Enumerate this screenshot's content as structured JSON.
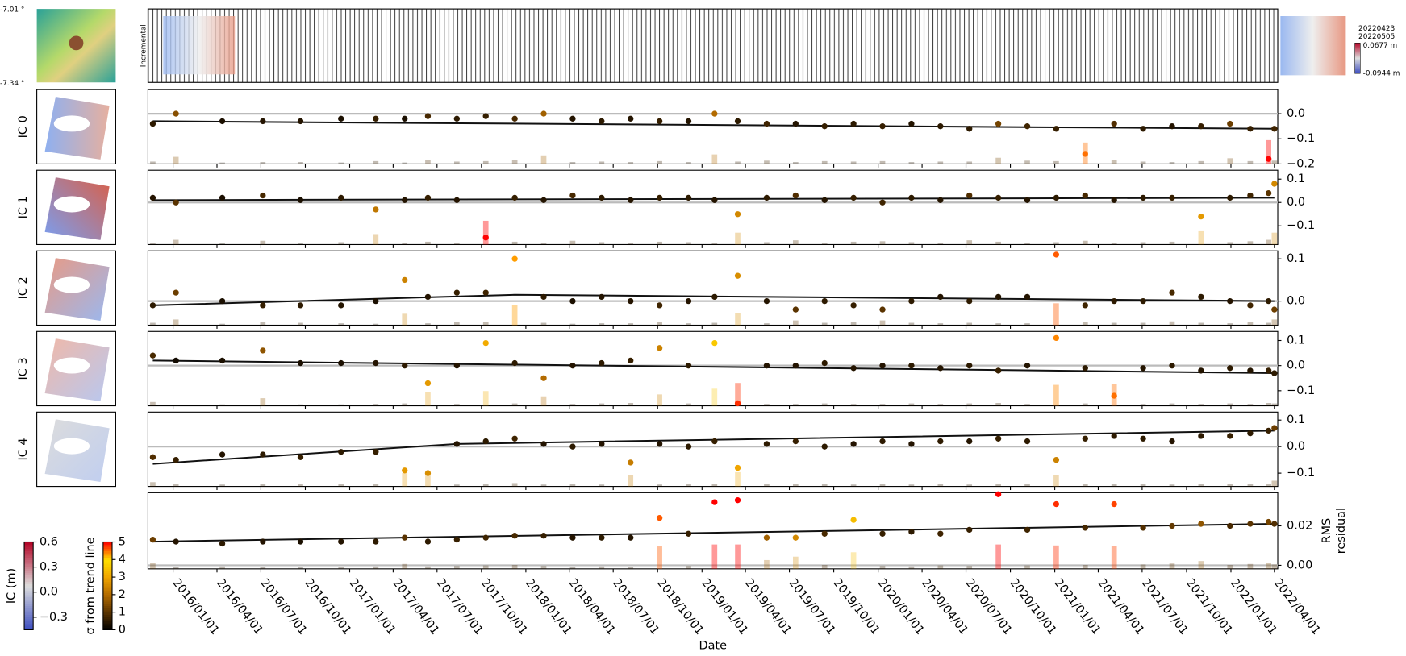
{
  "chart_data": {
    "type": "timeseries-panels",
    "xlabel": "Date",
    "x": [
      "2015/11/20",
      "2016/01/07",
      "2016/04/12",
      "2016/07/05",
      "2016/09/21",
      "2016/12/14",
      "2017/02/24",
      "2017/04/25",
      "2017/06/12",
      "2017/08/11",
      "2017/10/10",
      "2017/12/09",
      "2018/02/07",
      "2018/04/08",
      "2018/06/07",
      "2018/08/06",
      "2018/10/05",
      "2018/12/04",
      "2019/01/27",
      "2019/03/16",
      "2019/05/15",
      "2019/07/14",
      "2019/09/12",
      "2019/11/11",
      "2020/01/10",
      "2020/03/10",
      "2020/05/09",
      "2020/07/08",
      "2020/09/06",
      "2020/11/05",
      "2021/01/04",
      "2021/03/05",
      "2021/05/04",
      "2021/07/03",
      "2021/09/01",
      "2021/10/31",
      "2021/12/30",
      "2022/02/10",
      "2022/03/20",
      "2022/04/01"
    ],
    "xlim": [
      "2015/11/10",
      "2022/04/08"
    ],
    "xticks": [
      "2016/01/01",
      "2016/04/01",
      "2016/07/01",
      "2016/10/01",
      "2017/01/01",
      "2017/04/01",
      "2017/07/01",
      "2017/10/01",
      "2018/01/01",
      "2018/04/01",
      "2018/07/01",
      "2018/10/01",
      "2019/01/01",
      "2019/04/01",
      "2019/07/01",
      "2019/10/01",
      "2020/01/01",
      "2020/04/01",
      "2020/07/01",
      "2020/10/01",
      "2021/01/01",
      "2021/04/01",
      "2021/07/01",
      "2021/10/01",
      "2022/01/01",
      "2022/04/01"
    ],
    "panels": [
      {
        "type": "scatter",
        "ylabel": "IC 0",
        "values": [
          -0.04,
          0.0,
          -0.03,
          -0.03,
          -0.03,
          -0.02,
          -0.02,
          -0.02,
          -0.01,
          -0.02,
          -0.01,
          -0.02,
          0.0,
          -0.02,
          -0.03,
          -0.02,
          -0.03,
          -0.03,
          0.0,
          -0.03,
          -0.04,
          -0.04,
          -0.05,
          -0.04,
          -0.05,
          -0.04,
          -0.05,
          -0.06,
          -0.04,
          -0.05,
          -0.06,
          -0.16,
          -0.04,
          -0.06,
          -0.05,
          -0.05,
          -0.04,
          -0.06,
          -0.18,
          -0.06
        ],
        "sigma": [
          0.5,
          1.5,
          0.3,
          0.4,
          0.4,
          0.3,
          0.6,
          0.3,
          0.8,
          0.5,
          0.6,
          0.8,
          1.8,
          0.4,
          0.5,
          0.4,
          0.6,
          0.4,
          2.0,
          0.5,
          0.7,
          0.4,
          0.6,
          0.5,
          0.6,
          0.4,
          0.5,
          0.5,
          1.3,
          0.7,
          0.6,
          4.5,
          0.9,
          0.5,
          0.4,
          0.6,
          1.2,
          0.6,
          5,
          0.7
        ],
        "trend_x": [
          "2015/11/20",
          "2022/04/01"
        ],
        "trend": [
          -0.03,
          -0.06
        ],
        "ylim": [
          -0.2,
          0.096
        ],
        "yticks": [
          {
            "value": 0,
            "label": "0.0"
          },
          {
            "value": -0.1,
            "label": "−0.1"
          },
          {
            "value": -0.2,
            "label": "−0.2"
          }
        ]
      },
      {
        "type": "scatter",
        "ylabel": "IC 1",
        "values": [
          0.02,
          0.0,
          0.02,
          0.03,
          0.01,
          0.02,
          -0.03,
          0.01,
          0.02,
          0.01,
          -0.15,
          0.02,
          0.01,
          0.03,
          0.02,
          0.01,
          0.02,
          0.02,
          0.01,
          -0.05,
          0.02,
          0.03,
          0.01,
          0.02,
          0.0,
          0.02,
          0.01,
          0.03,
          0.02,
          0.01,
          0.02,
          0.03,
          0.01,
          0.02,
          0.02,
          -0.06,
          0.02,
          0.03,
          0.04,
          0.08
        ],
        "sigma": [
          0.4,
          1.0,
          0.3,
          0.8,
          0.3,
          0.5,
          2.2,
          0.4,
          0.6,
          0.4,
          5,
          0.6,
          0.4,
          0.8,
          0.5,
          0.4,
          0.6,
          0.5,
          0.4,
          2.5,
          0.5,
          0.9,
          0.4,
          0.6,
          0.7,
          0.5,
          0.4,
          0.9,
          0.6,
          0.4,
          0.5,
          0.8,
          0.4,
          0.5,
          0.6,
          2.8,
          0.5,
          0.7,
          1.0,
          2.5
        ],
        "trend_x": [
          "2015/11/20",
          "2022/04/01"
        ],
        "trend": [
          0.01,
          0.02
        ],
        "ylim": [
          -0.18,
          0.138
        ],
        "yticks": [
          {
            "value": 0.1,
            "label": "0.1"
          },
          {
            "value": 0,
            "label": "0.0"
          },
          {
            "value": -0.1,
            "label": "−0.1"
          }
        ]
      },
      {
        "type": "scatter",
        "ylabel": "IC 2",
        "values": [
          -0.01,
          0.02,
          0.0,
          -0.01,
          -0.01,
          -0.01,
          0.0,
          0.05,
          0.01,
          0.02,
          0.02,
          0.1,
          0.01,
          0.0,
          0.01,
          0.0,
          -0.01,
          0.0,
          0.01,
          0.06,
          0.0,
          -0.02,
          0.0,
          -0.01,
          -0.02,
          0.0,
          0.01,
          0.0,
          0.01,
          0.01,
          0.11,
          -0.01,
          0.0,
          0.0,
          0.02,
          0.01,
          0.0,
          -0.01,
          0.0,
          -0.02
        ],
        "sigma": [
          0.5,
          1.2,
          0.3,
          0.6,
          0.5,
          0.4,
          0.3,
          2.4,
          0.4,
          0.6,
          0.7,
          4.3,
          0.5,
          0.3,
          0.4,
          0.4,
          0.7,
          0.4,
          0.5,
          2.6,
          0.4,
          1.0,
          0.5,
          0.6,
          1.0,
          0.5,
          0.4,
          0.5,
          0.4,
          0.4,
          4.6,
          0.7,
          0.5,
          0.5,
          0.8,
          0.5,
          0.4,
          0.7,
          0.5,
          1.2
        ],
        "trend_x": [
          "2015/11/20",
          "2017/12/09",
          "2022/04/01"
        ],
        "trend": [
          -0.01,
          0.015,
          0.0
        ],
        "ylim": [
          -0.057,
          0.119
        ],
        "yticks": [
          {
            "value": 0.1,
            "label": "0.1"
          },
          {
            "value": 0,
            "label": "0.0"
          }
        ]
      },
      {
        "type": "scatter",
        "ylabel": "IC 3",
        "values": [
          0.04,
          0.02,
          0.02,
          0.06,
          0.01,
          0.01,
          0.01,
          0.0,
          -0.07,
          0.0,
          0.09,
          0.01,
          -0.05,
          0.0,
          0.01,
          0.02,
          0.07,
          0.0,
          0.09,
          -0.15,
          0.0,
          0.0,
          0.01,
          -0.01,
          0.0,
          0.0,
          -0.01,
          0.0,
          -0.02,
          0.0,
          0.11,
          -0.01,
          -0.12,
          -0.01,
          0.0,
          -0.02,
          -0.01,
          -0.02,
          -0.02,
          -0.03
        ],
        "sigma": [
          0.8,
          0.2,
          0.3,
          1.6,
          0.3,
          0.3,
          0.4,
          0.5,
          2.8,
          0.4,
          3.1,
          0.5,
          2.0,
          0.4,
          0.5,
          0.6,
          2.4,
          0.5,
          3.6,
          4.8,
          0.4,
          0.4,
          0.5,
          0.4,
          0.4,
          0.5,
          0.4,
          0.5,
          0.6,
          0.4,
          4.4,
          0.5,
          4.5,
          0.4,
          0.5,
          0.4,
          0.5,
          0.4,
          0.6,
          0.5
        ],
        "trend_x": [
          "2015/11/20",
          "2022/04/01"
        ],
        "trend": [
          0.02,
          -0.03
        ],
        "ylim": [
          -0.16,
          0.136
        ],
        "yticks": [
          {
            "value": 0.1,
            "label": "0.1"
          },
          {
            "value": 0,
            "label": "0.0"
          },
          {
            "value": -0.1,
            "label": "−0.1"
          }
        ]
      },
      {
        "type": "scatter",
        "ylabel": "IC 4",
        "values": [
          -0.04,
          -0.05,
          -0.03,
          -0.03,
          -0.04,
          -0.02,
          -0.02,
          -0.09,
          -0.1,
          0.01,
          0.02,
          0.03,
          0.01,
          0.0,
          0.01,
          -0.06,
          0.01,
          0.0,
          0.02,
          -0.08,
          0.01,
          0.02,
          0.0,
          0.01,
          0.02,
          0.01,
          0.02,
          0.02,
          0.03,
          0.02,
          -0.05,
          0.03,
          0.04,
          0.03,
          0.02,
          0.04,
          0.04,
          0.05,
          0.06,
          0.07
        ],
        "sigma": [
          0.9,
          0.6,
          0.4,
          0.5,
          0.6,
          0.5,
          0.6,
          2.8,
          2.6,
          0.4,
          0.5,
          0.7,
          0.4,
          0.5,
          0.4,
          2.3,
          0.4,
          0.5,
          0.6,
          3.0,
          0.5,
          0.6,
          0.5,
          0.4,
          0.5,
          0.4,
          0.5,
          0.4,
          0.6,
          0.5,
          2.4,
          0.6,
          0.5,
          0.5,
          0.4,
          0.5,
          0.6,
          0.5,
          0.6,
          1.2
        ],
        "trend_x": [
          "2015/11/20",
          "2017/08/11",
          "2022/04/01"
        ],
        "trend": [
          -0.065,
          0.01,
          0.06
        ],
        "ylim": [
          -0.15,
          0.13
        ],
        "yticks": [
          {
            "value": 0.1,
            "label": "0.1"
          },
          {
            "value": 0,
            "label": "0.0"
          },
          {
            "value": -0.1,
            "label": "−0.1"
          }
        ]
      },
      {
        "type": "scatter",
        "ylabel": [
          "RMS",
          "residual"
        ],
        "values": [
          0.013,
          0.012,
          0.011,
          0.012,
          0.012,
          0.012,
          0.012,
          0.014,
          0.012,
          0.013,
          0.014,
          0.015,
          0.015,
          0.014,
          0.014,
          0.014,
          0.024,
          0.016,
          0.032,
          0.033,
          0.014,
          0.014,
          0.016,
          0.023,
          0.016,
          0.017,
          0.016,
          0.018,
          0.036,
          0.018,
          0.031,
          0.019,
          0.031,
          0.019,
          0.02,
          0.021,
          0.02,
          0.021,
          0.022,
          0.021
        ],
        "sigma": [
          1.2,
          0.4,
          0.5,
          0.4,
          0.3,
          0.4,
          0.5,
          1.0,
          0.5,
          0.6,
          0.7,
          0.8,
          0.6,
          0.4,
          0.5,
          0.4,
          4.6,
          0.6,
          5,
          5,
          1.8,
          2.5,
          0.8,
          3.4,
          0.6,
          0.5,
          0.7,
          0.6,
          5,
          0.7,
          4.8,
          0.8,
          4.7,
          0.9,
          1.1,
          1.6,
          0.8,
          1.0,
          1.3,
          0.9
        ],
        "trend_x": [
          "2015/11/20",
          "2022/04/01"
        ],
        "trend": [
          0.012,
          0.021
        ],
        "ylim": [
          -0.0018,
          0.0368
        ],
        "yticks": [
          {
            "value": 0.02,
            "label": "0.02"
          },
          {
            "value": 0,
            "label": "0.00"
          }
        ]
      }
    ],
    "ic_colorbar": {
      "label": "IC (m)",
      "lim": [
        -0.45,
        0.6
      ],
      "colors": [
        "#3b4cc0",
        "#dddddd",
        "#b40426"
      ],
      "ticks": [
        {
          "value": 0.6,
          "label": "0.6"
        },
        {
          "value": 0.3,
          "label": "0.3"
        },
        {
          "value": 0,
          "label": "0.0"
        },
        {
          "value": -0.3,
          "label": "−0.3"
        }
      ]
    },
    "sigma_colorbar": {
      "label": "σ from trend line",
      "lim": [
        0,
        5
      ],
      "colors": [
        "#000000",
        "#5a3300",
        "#b36b00",
        "#f0a500",
        "#ffe000",
        "#ff0000"
      ],
      "ticks": [
        0,
        1,
        2,
        3,
        4,
        5
      ]
    },
    "incremental": {
      "label": "Incremental",
      "dates": [
        "20220423",
        "20220505"
      ],
      "max_label": "0.0677 m",
      "min_label": "-0.0944 m"
    },
    "dem": {
      "lat_top": "-7.01 °",
      "lat_bottom": "-7.34 °"
    }
  }
}
